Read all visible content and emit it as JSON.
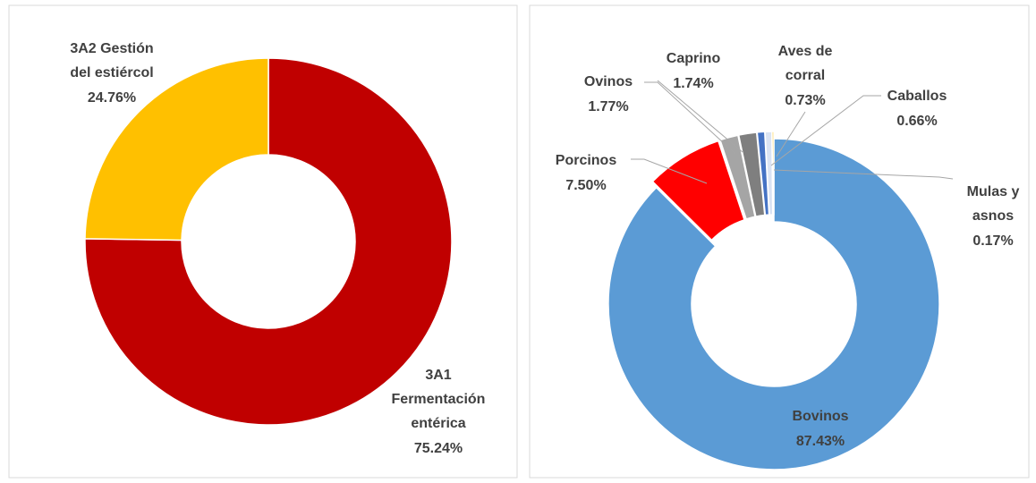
{
  "chart_data": [
    {
      "type": "donut",
      "categories": [
        "3A1 Fermentación entérica",
        "3A2 Gestión del estiércol"
      ],
      "values": [
        75.24,
        24.76
      ],
      "value_labels": [
        "75.24%",
        "24.76%"
      ],
      "colors": [
        "#c00000",
        "#ffc000"
      ]
    },
    {
      "type": "donut",
      "categories": [
        "Bovinos",
        "Porcinos",
        "Ovinos",
        "Caprino",
        "Aves de corral",
        "Caballos",
        "Mulas y asnos"
      ],
      "values": [
        87.43,
        7.5,
        1.77,
        1.74,
        0.73,
        0.66,
        0.17
      ],
      "value_labels": [
        "87.43%",
        "7.50%",
        "1.77%",
        "1.74%",
        "0.73%",
        "0.66%",
        "0.17%"
      ],
      "colors": [
        "#5b9bd5",
        "#ff0000",
        "#a5a5a5",
        "#7f7f7f",
        "#4472c4",
        "#dae3f3",
        "#ffc000"
      ]
    }
  ]
}
